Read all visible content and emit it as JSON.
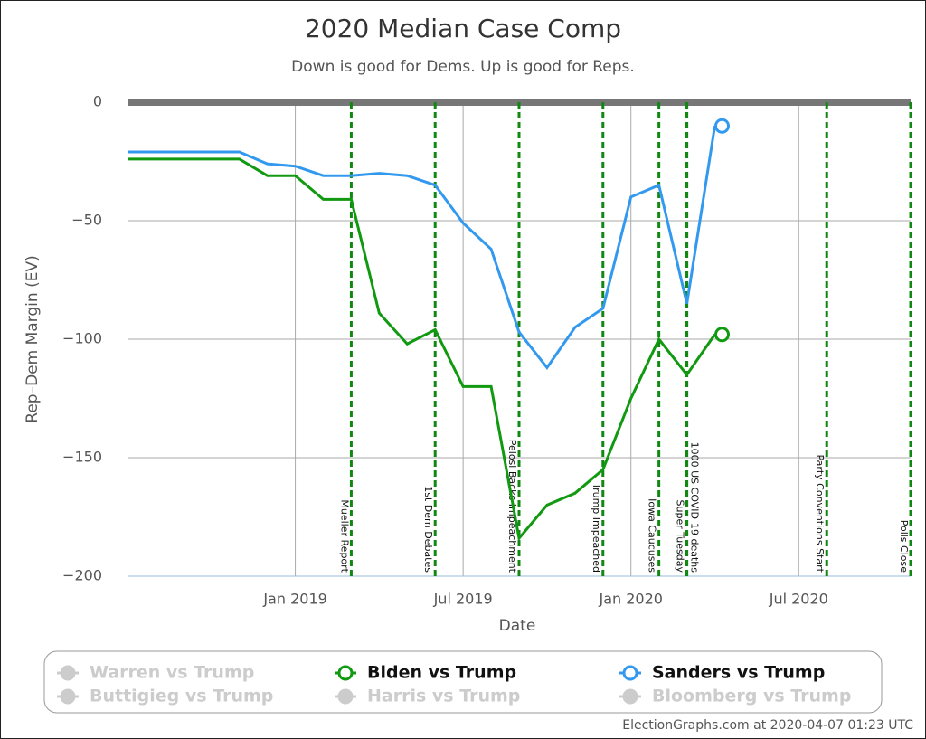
{
  "chart_data": {
    "type": "line",
    "title": "2020 Median Case Comp",
    "subtitle": "Down is good for Dems. Up is good for Reps.",
    "x_label": "Date",
    "y_label": "Rep–Dem Margin (EV)",
    "x": [
      "2018-07",
      "2018-08",
      "2018-09",
      "2018-10",
      "2018-11",
      "2018-12",
      "2019-01",
      "2019-02",
      "2019-03",
      "2019-04",
      "2019-05",
      "2019-06",
      "2019-07",
      "2019-08",
      "2019-09",
      "2019-10",
      "2019-11",
      "2019-12",
      "2020-01",
      "2020-02",
      "2020-03",
      "2020-04"
    ],
    "series": [
      {
        "name": "Biden vs Trump",
        "color": "#119911",
        "values": [
          -24,
          -24,
          -24,
          -24,
          -24,
          -31,
          -31,
          -41,
          -41,
          -89,
          -102,
          -96,
          -120,
          -120,
          -184,
          -170,
          -165,
          -155,
          -125,
          -100,
          -115,
          -98
        ]
      },
      {
        "name": "Sanders vs Trump",
        "color": "#3399ee",
        "values": [
          -21,
          -21,
          -21,
          -21,
          -21,
          -26,
          -27,
          -31,
          -31,
          -30,
          -31,
          -35,
          -51,
          -62,
          -97,
          -112,
          -95,
          -87,
          -40,
          -35,
          -85,
          -10
        ]
      }
    ],
    "inactive_legend": [
      "Warren vs Trump",
      "Buttigieg vs Trump",
      "Harris vs Trump",
      "Bloomberg vs Trump"
    ],
    "inactive_color": "#cccccc",
    "xlim": [
      "2018-07",
      "2020-11"
    ],
    "xticks": [
      {
        "value": "2019-01",
        "label": "Jan 2019"
      },
      {
        "value": "2019-07",
        "label": "Jul 2019"
      },
      {
        "value": "2020-01",
        "label": "Jan 2020"
      },
      {
        "value": "2020-07",
        "label": "Jul 2020"
      }
    ],
    "ylim": [
      -200,
      0
    ],
    "yticks": [
      0,
      {
        "value": -50,
        "label": "−50"
      },
      {
        "value": -100,
        "label": "−100"
      },
      {
        "value": -150,
        "label": "−150"
      },
      {
        "value": -200,
        "label": "−200"
      }
    ],
    "grid": true,
    "events": [
      {
        "label": "Mueller Report",
        "x": "2019-03"
      },
      {
        "label": "1st Dem Debates",
        "x": "2019-06"
      },
      {
        "label": "Pelosi Backs Impeachment",
        "x": "2019-09"
      },
      {
        "label": "Trump Impeached",
        "x": "2019-12"
      },
      {
        "label": "Iowa Caucuses",
        "x": "2020-02"
      },
      {
        "label": "Super Tuesday",
        "x": "2020-03"
      },
      {
        "label": "1000 US COVID-19 deaths",
        "x": "2020-03"
      },
      {
        "label": "Party Conventions Start",
        "x": "2020-08"
      },
      {
        "label": "Polls Close",
        "x": "2020-11"
      }
    ],
    "event_color": "#118811",
    "credit": "ElectionGraphs.com at 2020-04-07 01:23 UTC"
  }
}
